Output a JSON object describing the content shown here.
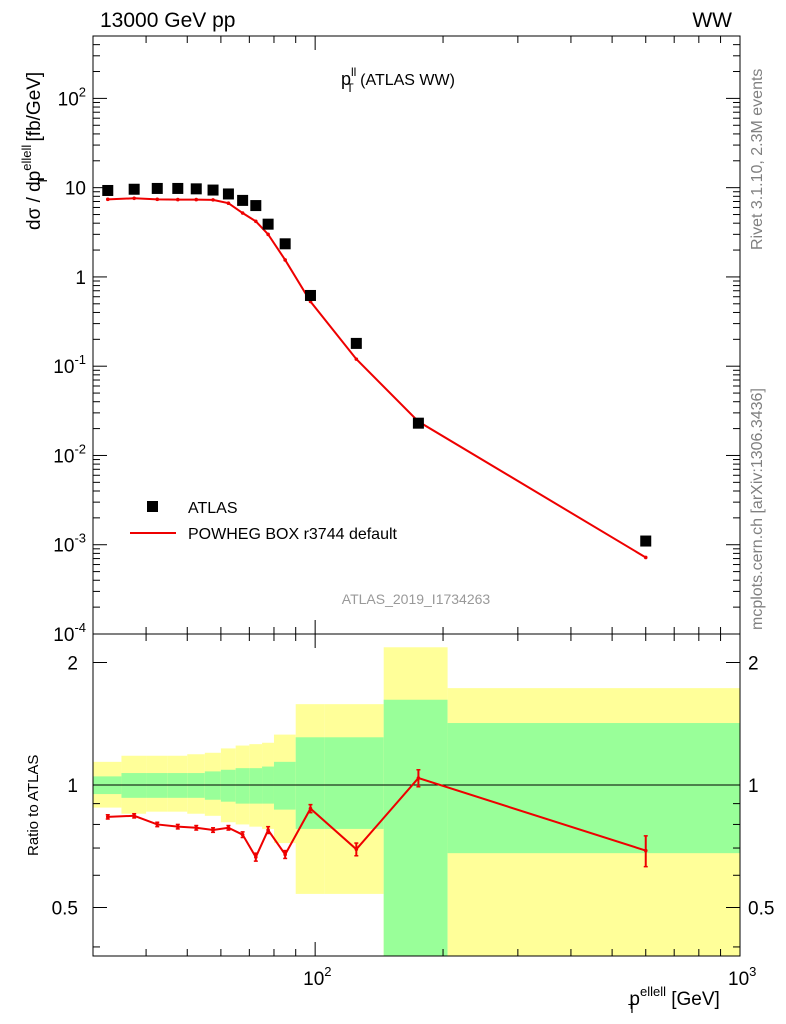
{
  "header": {
    "left": "13000 GeV pp",
    "right": "WW"
  },
  "side": {
    "rivet": "Rivet 3.1.10,  2.3M events",
    "mcplots": "mcplots.cern.ch [arXiv:1306.3436]"
  },
  "plot_title": {
    "main": "p",
    "sup": "ll",
    "sub": "T",
    "rest": " (ATLAS WW)"
  },
  "analysis_id": "ATLAS_2019_I1734263",
  "y_axis_main": {
    "pre": "dσ / dp",
    "sup": "ellell",
    "sub": "T",
    "post": " [fb/GeV]"
  },
  "y_axis_ratio": "Ratio to ATLAS",
  "x_axis": {
    "main": "p",
    "sup": "ellell",
    "sub": "T",
    "post": " [GeV]"
  },
  "legend": {
    "data": "ATLAS",
    "mc": "POWHEG BOX r3744 default"
  },
  "colors": {
    "data": "#000000",
    "mc": "#ee0000",
    "band_inner": "#99ff99",
    "band_outer": "#ffff99"
  },
  "chart_data": [
    {
      "type": "scatter",
      "panel": "main",
      "xscale": "log",
      "yscale": "log",
      "xlim": [
        30,
        1000
      ],
      "ylim": [
        0.0001,
        500
      ],
      "x_ticks": [
        "10^2",
        "10^3"
      ],
      "y_ticks": [
        "10^-4",
        "10^-3",
        "10^-2",
        "10^-1",
        "1",
        "10",
        "10^2"
      ],
      "series": [
        {
          "name": "ATLAS",
          "x": [
            32.5,
            37.5,
            42.5,
            47.5,
            52.5,
            57.5,
            62.5,
            67.5,
            72.5,
            77.5,
            85,
            97.5,
            125,
            175,
            600
          ],
          "y": [
            9.3,
            9.6,
            9.8,
            9.8,
            9.7,
            9.4,
            8.5,
            7.2,
            6.3,
            3.9,
            2.35,
            0.62,
            0.18,
            0.023,
            0.0011
          ]
        },
        {
          "name": "POWHEG BOX r3744 default",
          "x": [
            32.5,
            37.5,
            42.5,
            47.5,
            52.5,
            57.5,
            62.5,
            67.5,
            72.5,
            77.5,
            85,
            97.5,
            125,
            175,
            600
          ],
          "y": [
            7.4,
            7.6,
            7.4,
            7.35,
            7.35,
            7.3,
            6.7,
            5.2,
            4.2,
            3.0,
            1.55,
            0.53,
            0.12,
            0.024,
            0.00072
          ]
        }
      ]
    },
    {
      "type": "line",
      "panel": "ratio",
      "xscale": "log",
      "xlim": [
        30,
        1000
      ],
      "ylim": [
        0.38,
        2.35
      ],
      "y_ticks": [
        "0.5",
        "1",
        "2"
      ],
      "reference": 1,
      "series": [
        {
          "name": "POWHEG BOX r3744 default",
          "x": [
            32.5,
            37.5,
            42.5,
            47.5,
            52.5,
            57.5,
            62.5,
            67.5,
            72.5,
            77.5,
            85,
            97.5,
            125,
            175,
            600
          ],
          "y": [
            0.835,
            0.84,
            0.8,
            0.79,
            0.785,
            0.775,
            0.785,
            0.755,
            0.665,
            0.775,
            0.675,
            0.875,
            0.695,
            1.04,
            0.69
          ],
          "yerr": [
            0.01,
            0.01,
            0.01,
            0.01,
            0.01,
            0.01,
            0.01,
            0.012,
            0.015,
            0.015,
            0.015,
            0.02,
            0.025,
            0.05,
            0.06
          ]
        }
      ],
      "bands": {
        "edges": [
          30,
          35,
          40,
          45,
          50,
          55,
          60,
          65,
          70,
          75,
          80,
          90,
          105,
          145,
          205,
          1000
        ],
        "inner_low": [
          0.95,
          0.93,
          0.93,
          0.93,
          0.93,
          0.92,
          0.91,
          0.9,
          0.9,
          0.9,
          0.87,
          0.78,
          0.78,
          0.37,
          0.68
        ],
        "inner_high": [
          1.05,
          1.07,
          1.07,
          1.07,
          1.07,
          1.08,
          1.09,
          1.1,
          1.1,
          1.11,
          1.14,
          1.31,
          1.31,
          1.62,
          1.42
        ],
        "outer_low": [
          0.88,
          0.85,
          0.86,
          0.86,
          0.85,
          0.84,
          0.81,
          0.8,
          0.79,
          0.78,
          0.72,
          0.54,
          0.54,
          0.35,
          0.37
        ],
        "outer_high": [
          1.14,
          1.18,
          1.18,
          1.18,
          1.19,
          1.2,
          1.23,
          1.25,
          1.26,
          1.27,
          1.33,
          1.58,
          1.58,
          2.18,
          1.73
        ]
      }
    }
  ]
}
